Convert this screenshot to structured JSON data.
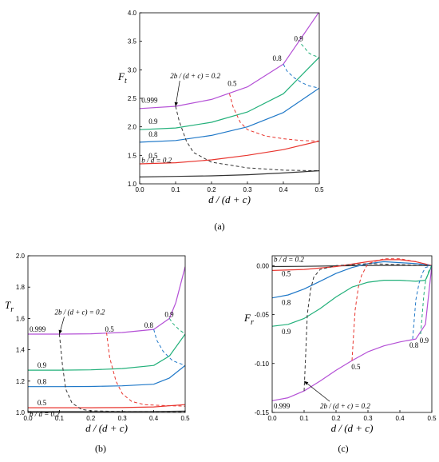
{
  "colors": {
    "b_d_0.2": "#333333",
    "b_d_0.5": "#e8352e",
    "b_d_0.8": "#1f78c8",
    "b_d_0.9": "#22b07a",
    "b_d_0.999": "#b450d6"
  },
  "chart_data": [
    {
      "id": "a",
      "type": "line",
      "caption": "(a)",
      "ylabel": "F",
      "ylabel_sub": "t",
      "xlabel": "d / (d + c)",
      "xlim": [
        0.0,
        0.5
      ],
      "ylim": [
        1.0,
        4.0
      ],
      "xticks": [
        "0.0",
        "0.1",
        "0.2",
        "0.3",
        "0.4",
        "0.5"
      ],
      "yticks": [
        "1.0",
        "1.5",
        "2.0",
        "2.5",
        "3.0",
        "3.5",
        "4.0"
      ],
      "series": [
        {
          "name": "b / d = 0.2",
          "key": "b_d_0.2",
          "style": "solid",
          "x": [
            0.0,
            0.1,
            0.2,
            0.3,
            0.4,
            0.5
          ],
          "y": [
            1.12,
            1.13,
            1.14,
            1.16,
            1.19,
            1.23
          ]
        },
        {
          "name": "0.5",
          "key": "b_d_0.5",
          "style": "solid",
          "x": [
            0.0,
            0.1,
            0.2,
            0.3,
            0.4,
            0.5
          ],
          "y": [
            1.35,
            1.37,
            1.42,
            1.5,
            1.6,
            1.75
          ]
        },
        {
          "name": "0.8",
          "key": "b_d_0.8",
          "style": "solid",
          "x": [
            0.0,
            0.1,
            0.2,
            0.3,
            0.4,
            0.5
          ],
          "y": [
            1.73,
            1.76,
            1.85,
            2.0,
            2.25,
            2.68
          ]
        },
        {
          "name": "0.9",
          "key": "b_d_0.9",
          "style": "solid",
          "x": [
            0.0,
            0.1,
            0.2,
            0.3,
            0.4,
            0.5
          ],
          "y": [
            1.95,
            1.98,
            2.08,
            2.26,
            2.58,
            3.22
          ]
        },
        {
          "name": "0.999",
          "key": "b_d_0.999",
          "style": "solid",
          "x": [
            0.0,
            0.1,
            0.2,
            0.3,
            0.4,
            0.5
          ],
          "y": [
            2.32,
            2.36,
            2.48,
            2.7,
            3.1,
            4.02
          ]
        },
        {
          "name": "",
          "key": "b_d_0.2",
          "style": "dashed",
          "x": [
            0.1,
            0.11,
            0.13,
            0.15,
            0.2,
            0.3,
            0.4,
            0.5
          ],
          "y": [
            2.36,
            2.1,
            1.75,
            1.55,
            1.38,
            1.28,
            1.24,
            1.23
          ]
        },
        {
          "name": "",
          "key": "b_d_0.5",
          "style": "dashed",
          "x": [
            0.25,
            0.26,
            0.28,
            0.3,
            0.35,
            0.4,
            0.45,
            0.5
          ],
          "y": [
            2.58,
            2.35,
            2.08,
            1.95,
            1.84,
            1.79,
            1.76,
            1.75
          ]
        },
        {
          "name": "",
          "key": "b_d_0.8",
          "style": "dashed",
          "x": [
            0.4,
            0.41,
            0.43,
            0.45,
            0.47,
            0.5
          ],
          "y": [
            3.1,
            2.98,
            2.86,
            2.78,
            2.72,
            2.68
          ]
        },
        {
          "name": "",
          "key": "b_d_0.9",
          "style": "dashed",
          "x": [
            0.45,
            0.46,
            0.47,
            0.48,
            0.5
          ],
          "y": [
            3.45,
            3.38,
            3.3,
            3.26,
            3.22
          ]
        }
      ],
      "annotations": [
        {
          "text": "b / d = 0.2",
          "x": 0.005,
          "y": 1.37
        },
        {
          "text": "0.5",
          "x": 0.025,
          "y": 1.45
        },
        {
          "text": "0.8",
          "x": 0.025,
          "y": 1.83
        },
        {
          "text": "0.9",
          "x": 0.025,
          "y": 2.05
        },
        {
          "text": "0.999",
          "x": 0.005,
          "y": 2.42
        },
        {
          "text": "0.5",
          "x": 0.245,
          "y": 2.72
        },
        {
          "text": "0.8",
          "x": 0.37,
          "y": 3.16
        },
        {
          "text": "0.9",
          "x": 0.43,
          "y": 3.5
        },
        {
          "text": "2b / (d + c) = 0.2",
          "x": 0.085,
          "y": 2.85,
          "arrow_to": [
            0.1,
            2.36
          ]
        }
      ]
    },
    {
      "id": "b",
      "type": "line",
      "caption": "(b)",
      "ylabel": "T",
      "ylabel_sub": "r",
      "xlabel": "d / (d + c)",
      "xlim": [
        0.0,
        0.5
      ],
      "ylim": [
        1.0,
        2.0
      ],
      "xticks": [
        "0.0",
        "0.1",
        "0.2",
        "0.3",
        "0.4",
        "0.5"
      ],
      "yticks": [
        "1.0",
        "1.2",
        "1.4",
        "1.6",
        "1.8",
        "2.0"
      ],
      "series": [
        {
          "name": "b / d = 0.2",
          "key": "b_d_0.2",
          "style": "solid",
          "x": [
            0.0,
            0.1,
            0.2,
            0.3,
            0.4,
            0.5
          ],
          "y": [
            1.005,
            1.005,
            1.005,
            1.005,
            1.006,
            1.008
          ]
        },
        {
          "name": "0.5",
          "key": "b_d_0.5",
          "style": "solid",
          "x": [
            0.0,
            0.1,
            0.2,
            0.3,
            0.4,
            0.5
          ],
          "y": [
            1.03,
            1.03,
            1.03,
            1.031,
            1.035,
            1.05
          ]
        },
        {
          "name": "0.8",
          "key": "b_d_0.8",
          "style": "solid",
          "x": [
            0.0,
            0.1,
            0.2,
            0.3,
            0.4,
            0.45,
            0.5
          ],
          "y": [
            1.165,
            1.165,
            1.166,
            1.17,
            1.18,
            1.22,
            1.3
          ]
        },
        {
          "name": "0.9",
          "key": "b_d_0.9",
          "style": "solid",
          "x": [
            0.0,
            0.1,
            0.2,
            0.3,
            0.4,
            0.45,
            0.5
          ],
          "y": [
            1.27,
            1.27,
            1.272,
            1.28,
            1.3,
            1.36,
            1.5
          ]
        },
        {
          "name": "0.999",
          "key": "b_d_0.999",
          "style": "solid",
          "x": [
            0.0,
            0.1,
            0.2,
            0.3,
            0.4,
            0.45,
            0.47,
            0.5
          ],
          "y": [
            1.5,
            1.5,
            1.502,
            1.51,
            1.53,
            1.6,
            1.7,
            1.93
          ]
        },
        {
          "name": "",
          "key": "b_d_0.2",
          "style": "dashed",
          "x": [
            0.1,
            0.11,
            0.12,
            0.14,
            0.17,
            0.2,
            0.3,
            0.5
          ],
          "y": [
            1.5,
            1.3,
            1.15,
            1.06,
            1.02,
            1.01,
            1.006,
            1.005
          ]
        },
        {
          "name": "",
          "key": "b_d_0.5",
          "style": "dashed",
          "x": [
            0.25,
            0.26,
            0.28,
            0.3,
            0.33,
            0.37,
            0.42,
            0.5
          ],
          "y": [
            1.51,
            1.35,
            1.2,
            1.12,
            1.07,
            1.05,
            1.045,
            1.04
          ]
        },
        {
          "name": "",
          "key": "b_d_0.8",
          "style": "dashed",
          "x": [
            0.4,
            0.41,
            0.43,
            0.46,
            0.5
          ],
          "y": [
            1.53,
            1.46,
            1.39,
            1.33,
            1.3
          ]
        },
        {
          "name": "",
          "key": "b_d_0.9",
          "style": "dashed",
          "x": [
            0.45,
            0.46,
            0.48,
            0.5
          ],
          "y": [
            1.6,
            1.57,
            1.53,
            1.5
          ]
        }
      ],
      "annotations": [
        {
          "text": "b / d = 0.2",
          "x": 0.005,
          "y": 0.975
        },
        {
          "text": "0.5",
          "x": 0.03,
          "y": 1.045
        },
        {
          "text": "0.8",
          "x": 0.03,
          "y": 1.18
        },
        {
          "text": "0.9",
          "x": 0.03,
          "y": 1.285
        },
        {
          "text": "0.999",
          "x": 0.005,
          "y": 1.515
        },
        {
          "text": "0.5",
          "x": 0.245,
          "y": 1.515
        },
        {
          "text": "0.8",
          "x": 0.37,
          "y": 1.54
        },
        {
          "text": "0.9",
          "x": 0.435,
          "y": 1.61
        },
        {
          "text": "2b / (d + c) = 0.2",
          "x": 0.085,
          "y": 1.625,
          "arrow_to": [
            0.1,
            1.5
          ]
        }
      ]
    },
    {
      "id": "c",
      "type": "line",
      "caption": "(c)",
      "ylabel": "F",
      "ylabel_sub": "r",
      "xlabel": "d / (d + c)",
      "xlim": [
        0.0,
        0.5
      ],
      "ylim": [
        -0.15,
        0.01
      ],
      "xticks": [
        "0.0",
        "0.1",
        "0.2",
        "0.3",
        "0.4",
        "0.5"
      ],
      "yticks": [
        "-0.15",
        "-0.10",
        "-0.05",
        "0.00"
      ],
      "series": [
        {
          "name": "b / d = 0.2",
          "key": "b_d_0.2",
          "style": "solid",
          "x": [
            0.0,
            0.1,
            0.2,
            0.3,
            0.4,
            0.5
          ],
          "y": [
            -0.001,
            -0.0008,
            -0.0003,
            0.0001,
            0.0002,
            0.0
          ]
        },
        {
          "name": "0.5",
          "key": "b_d_0.5",
          "style": "solid",
          "x": [
            0.0,
            0.1,
            0.2,
            0.3,
            0.35,
            0.4,
            0.45,
            0.5
          ],
          "y": [
            -0.005,
            -0.004,
            -0.001,
            0.004,
            0.006,
            0.006,
            0.004,
            0.0
          ]
        },
        {
          "name": "0.8",
          "key": "b_d_0.8",
          "style": "solid",
          "x": [
            0.0,
            0.05,
            0.1,
            0.15,
            0.2,
            0.25,
            0.3,
            0.35,
            0.4,
            0.45,
            0.48,
            0.5
          ],
          "y": [
            -0.033,
            -0.03,
            -0.024,
            -0.016,
            -0.008,
            -0.002,
            0.002,
            0.004,
            0.003,
            0.002,
            0.001,
            0.0
          ]
        },
        {
          "name": "0.9",
          "key": "b_d_0.9",
          "style": "solid",
          "x": [
            0.0,
            0.05,
            0.1,
            0.15,
            0.2,
            0.25,
            0.3,
            0.35,
            0.4,
            0.45,
            0.48,
            0.5
          ],
          "y": [
            -0.062,
            -0.06,
            -0.054,
            -0.044,
            -0.032,
            -0.022,
            -0.017,
            -0.015,
            -0.015,
            -0.016,
            -0.015,
            0.0
          ]
        },
        {
          "name": "0.999",
          "key": "b_d_0.999",
          "style": "solid",
          "x": [
            0.0,
            0.05,
            0.1,
            0.15,
            0.2,
            0.25,
            0.3,
            0.35,
            0.4,
            0.45,
            0.48,
            0.5
          ],
          "y": [
            -0.138,
            -0.135,
            -0.128,
            -0.118,
            -0.107,
            -0.097,
            -0.088,
            -0.082,
            -0.078,
            -0.075,
            -0.06,
            0.0
          ]
        },
        {
          "name": "",
          "key": "b_d_0.2",
          "style": "dashed",
          "x": [
            0.1,
            0.105,
            0.11,
            0.12,
            0.13,
            0.15,
            0.2,
            0.3,
            0.5
          ],
          "y": [
            -0.128,
            -0.09,
            -0.05,
            -0.025,
            -0.012,
            -0.004,
            0.0,
            0.002,
            0.0
          ]
        },
        {
          "name": "",
          "key": "b_d_0.5",
          "style": "dashed",
          "x": [
            0.25,
            0.255,
            0.26,
            0.27,
            0.28,
            0.3,
            0.35,
            0.4,
            0.45,
            0.5
          ],
          "y": [
            -0.097,
            -0.07,
            -0.045,
            -0.022,
            -0.01,
            0.002,
            0.007,
            0.007,
            0.004,
            0.0
          ]
        },
        {
          "name": "",
          "key": "b_d_0.8",
          "style": "dashed",
          "x": [
            0.44,
            0.445,
            0.45,
            0.46,
            0.47,
            0.48,
            0.5
          ],
          "y": [
            -0.075,
            -0.055,
            -0.035,
            -0.018,
            -0.008,
            -0.002,
            0.0
          ]
        },
        {
          "name": "",
          "key": "b_d_0.9",
          "style": "dashed",
          "x": [
            0.465,
            0.47,
            0.475,
            0.48,
            0.49,
            0.5
          ],
          "y": [
            -0.07,
            -0.05,
            -0.03,
            -0.017,
            -0.006,
            0.0
          ]
        }
      ],
      "annotations": [
        {
          "text": "b / d = 0.2",
          "x": 0.005,
          "y": 0.004
        },
        {
          "text": "0.5",
          "x": 0.03,
          "y": -0.011
        },
        {
          "text": "0.8",
          "x": 0.03,
          "y": -0.04
        },
        {
          "text": "0.9",
          "x": 0.03,
          "y": -0.07
        },
        {
          "text": "0.999",
          "x": 0.005,
          "y": -0.146
        },
        {
          "text": "0.5",
          "x": 0.248,
          "y": -0.106
        },
        {
          "text": "0.8",
          "x": 0.43,
          "y": -0.084
        },
        {
          "text": "0.9",
          "x": 0.462,
          "y": -0.079
        },
        {
          "text": "2b / (d + c) = 0.2",
          "x": 0.15,
          "y": -0.146,
          "arrow_to": [
            0.1,
            -0.118
          ]
        }
      ]
    }
  ]
}
